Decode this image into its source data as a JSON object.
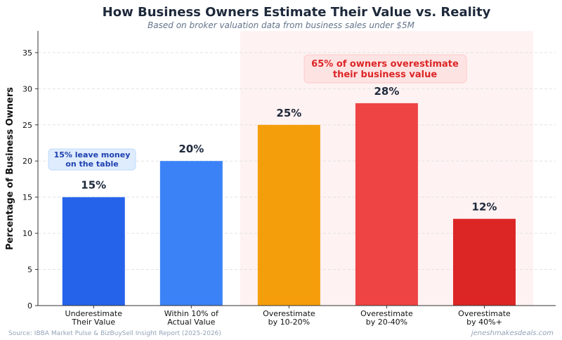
{
  "chart_data": {
    "type": "bar",
    "title": "How Business Owners Estimate Their Value vs. Reality",
    "subtitle": "Based on broker valuation data from business sales under $5M",
    "xlabel": "",
    "ylabel": "Percentage of Business Owners",
    "ylim": [
      0,
      38
    ],
    "xlim": [
      -0.57,
      4.73
    ],
    "yticks": [
      0,
      5,
      10,
      15,
      20,
      25,
      30,
      35
    ],
    "grid": "horizontal dashed",
    "categories": [
      [
        "Underestimate",
        "Their Value"
      ],
      [
        "Within 10% of",
        "Actual Value"
      ],
      [
        "Overestimate",
        "by 10-20%"
      ],
      [
        "Overestimate",
        "by 20-40%"
      ],
      [
        "Overestimate",
        "by 40%+"
      ]
    ],
    "values": [
      15,
      20,
      25,
      28,
      12
    ],
    "data_labels": [
      "15%",
      "20%",
      "25%",
      "28%",
      "12%"
    ],
    "colors": [
      "#2563eb",
      "#3b82f6",
      "#f59e0b",
      "#ef4444",
      "#dc2626"
    ],
    "highlight_region": {
      "from_category": 2,
      "to_category": 4,
      "color": "#fef2f2"
    },
    "annotations": [
      {
        "text": [
          "65% of owners overestimate",
          "their business value"
        ],
        "color": "#dc2626",
        "box": "#fee2e2"
      },
      {
        "text": [
          "15% leave money",
          "on the table"
        ],
        "color": "#1e40af",
        "box": "#dbeafe"
      }
    ]
  },
  "footer": {
    "source": "Source: IBBA Market Pulse & BizBuySell Insight Report (2025-2026)",
    "watermark": "jeneshmakesdeals.com"
  }
}
